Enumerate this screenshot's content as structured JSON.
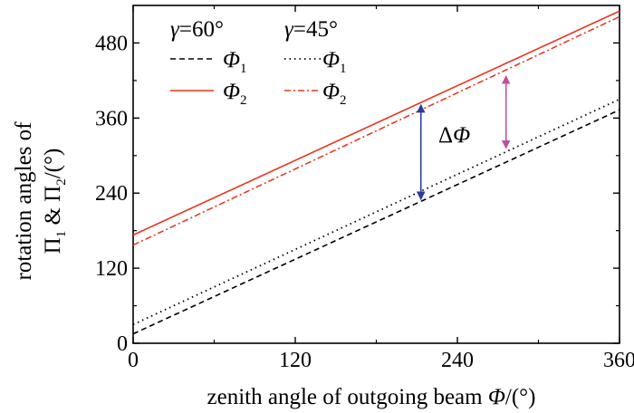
{
  "chart_data": {
    "type": "line",
    "xlabel_prefix": "zenith angle of outgoing beam ",
    "xlabel_symbol": "Φ",
    "xlabel_suffix": "/(°)",
    "ylabel_line1": "rotation angles of",
    "ylabel_line2": "Π",
    "ylabel_sub1": "1",
    "ylabel_mid": " & Π",
    "ylabel_sub2": "2",
    "ylabel_suffix": "/(°)",
    "xlim": [
      0,
      360
    ],
    "ylim": [
      0,
      540
    ],
    "xticks": [
      "0",
      "120",
      "240",
      "360"
    ],
    "yticks": [
      "0",
      "120",
      "240",
      "360",
      "480"
    ],
    "legend": {
      "group1": {
        "gamma": "γ",
        "value": "=60°"
      },
      "group2": {
        "gamma": "γ",
        "value": "=45°"
      },
      "phi": "Φ",
      "sub1": "1",
      "sub2": "2"
    },
    "annotation": {
      "delta": "Δ",
      "phi": "Φ"
    },
    "series": [
      {
        "group": "60",
        "index": "1",
        "color": "#000000",
        "dash": "dashed",
        "x": [
          0,
          360
        ],
        "y": [
          15,
          373
        ]
      },
      {
        "group": "60",
        "index": "2",
        "color": "#e8331e",
        "dash": "solid",
        "x": [
          0,
          360
        ],
        "y": [
          173,
          531
        ]
      },
      {
        "group": "45",
        "index": "1",
        "color": "#000000",
        "dash": "dotted",
        "x": [
          0,
          360
        ],
        "y": [
          30,
          390
        ]
      },
      {
        "group": "45",
        "index": "2",
        "color": "#e8331e",
        "dash": "dashdot",
        "x": [
          0,
          360
        ],
        "y": [
          157,
          522
        ]
      }
    ],
    "arrows": [
      {
        "color": "#2e3b9c",
        "x": 213,
        "y_from": 384,
        "y_to": 227
      },
      {
        "color": "#c04fa0",
        "x": 276,
        "y_from": 430,
        "y_to": 309
      }
    ]
  }
}
